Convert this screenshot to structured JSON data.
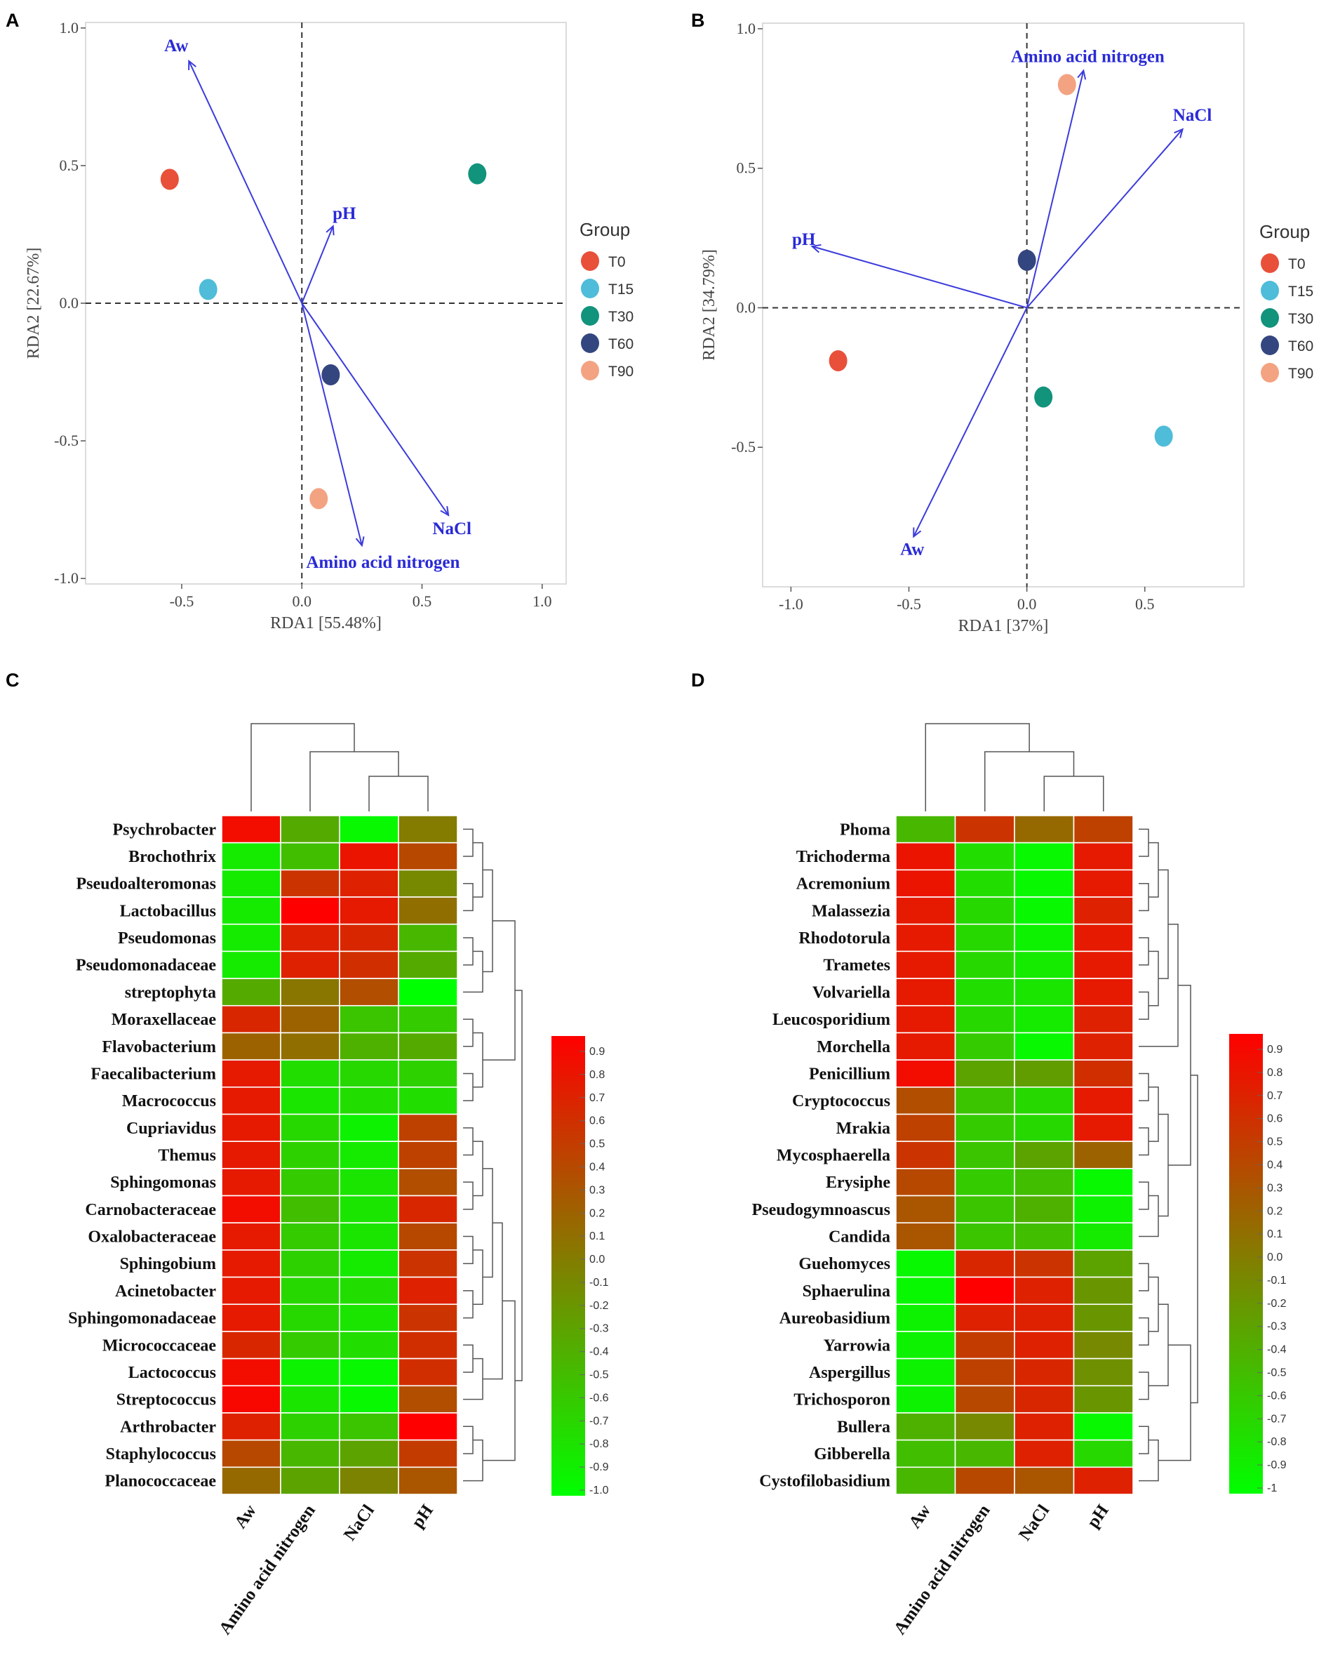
{
  "chart_data": [
    {
      "panel": "A",
      "type": "scatter",
      "subtype": "rda-biplot",
      "xlabel": "RDA1 [55.48%]",
      "ylabel": "RDA2 [22.67%]",
      "xlim": [
        -0.9,
        1.1
      ],
      "ylim": [
        -1.02,
        1.02
      ],
      "xticks": [
        -0.5,
        0.0,
        0.5,
        1.0
      ],
      "yticks": [
        1.0,
        0.5,
        0.0,
        -0.5,
        -1.0
      ],
      "xtick_labels": [
        "-0.5",
        "0.0",
        "0.5",
        "1.0"
      ],
      "ytick_labels": [
        "1.0",
        "0.5",
        "0.0",
        "-0.5",
        "-1.0"
      ],
      "legend": {
        "title": "Group",
        "items": [
          "T0",
          "T15",
          "T30",
          "T60",
          "T90"
        ]
      },
      "points": [
        {
          "group": "T0",
          "x": -0.55,
          "y": 0.45
        },
        {
          "group": "T15",
          "x": -0.39,
          "y": 0.05
        },
        {
          "group": "T30",
          "x": 0.73,
          "y": 0.47
        },
        {
          "group": "T60",
          "x": 0.12,
          "y": -0.26
        },
        {
          "group": "T90",
          "x": 0.07,
          "y": -0.71
        }
      ],
      "vectors": [
        {
          "label": "Aw",
          "x": -0.47,
          "y": 0.88
        },
        {
          "label": "pH",
          "x": 0.13,
          "y": 0.28
        },
        {
          "label": "NaCl",
          "x": 0.61,
          "y": -0.77
        },
        {
          "label": "Amino acid nitrogen",
          "x": 0.25,
          "y": -0.88
        }
      ]
    },
    {
      "panel": "B",
      "type": "scatter",
      "subtype": "rda-biplot",
      "xlabel": "RDA1 [37%]",
      "ylabel": "RDA2 [34.79%]",
      "xlim": [
        -1.12,
        0.92
      ],
      "ylim": [
        -1.0,
        1.02
      ],
      "xticks": [
        -1.0,
        -0.5,
        0.0,
        0.5
      ],
      "yticks": [
        1.0,
        0.5,
        0.0,
        -0.5
      ],
      "xtick_labels": [
        "-1.0",
        "-0.5",
        "0.0",
        "0.5"
      ],
      "ytick_labels": [
        "1.0",
        "0.5",
        "0.0",
        "-0.5"
      ],
      "legend": {
        "title": "Group",
        "items": [
          "T0",
          "T15",
          "T30",
          "T60",
          "T90"
        ]
      },
      "points": [
        {
          "group": "T0",
          "x": -0.8,
          "y": -0.19
        },
        {
          "group": "T15",
          "x": 0.58,
          "y": -0.46
        },
        {
          "group": "T30",
          "x": 0.07,
          "y": -0.32
        },
        {
          "group": "T60",
          "x": 0.0,
          "y": 0.17
        },
        {
          "group": "T90",
          "x": 0.17,
          "y": 0.8
        }
      ],
      "vectors": [
        {
          "label": "Amino acid nitrogen",
          "x": 0.24,
          "y": 0.85
        },
        {
          "label": "NaCl",
          "x": 0.66,
          "y": 0.64
        },
        {
          "label": "pH",
          "x": -0.91,
          "y": 0.22
        },
        {
          "label": "Aw",
          "x": -0.48,
          "y": -0.82
        }
      ]
    },
    {
      "panel": "C",
      "type": "heatmap",
      "columns": [
        "Aw",
        "Amino acid nitrogen",
        "NaCl",
        "pH"
      ],
      "rows": [
        "Psychrobacter",
        "Brochothrix",
        "Pseudoalteromonas",
        "Lactobacillus",
        "Pseudomonas",
        "Pseudomonadaceae",
        "streptophyta",
        "Moraxellaceae",
        "Flavobacterium",
        "Faecalibacterium",
        "Macrococcus",
        "Cupriavidus",
        "Themus",
        "Sphingomonas",
        "Carnobacteraceae",
        "Oxalobacteraceae",
        "Sphingobium",
        "Acinetobacter",
        "Sphingomonadaceae",
        "Micrococcaceae",
        "Lactococcus",
        "Streptococcus",
        "Arthrobacter",
        "Staphylococcus",
        "Planococcaceae"
      ],
      "values": [
        [
          0.85,
          -0.35,
          -0.95,
          0.0
        ],
        [
          -0.85,
          -0.5,
          0.8,
          0.4
        ],
        [
          -0.85,
          0.55,
          0.7,
          -0.1
        ],
        [
          -0.85,
          0.95,
          0.75,
          0.1
        ],
        [
          -0.85,
          0.7,
          0.65,
          -0.45
        ],
        [
          -0.85,
          0.7,
          0.6,
          -0.35
        ],
        [
          -0.35,
          0.05,
          0.35,
          -1.0
        ],
        [
          0.65,
          0.2,
          -0.55,
          -0.6
        ],
        [
          0.2,
          0.1,
          -0.4,
          -0.35
        ],
        [
          0.75,
          -0.75,
          -0.7,
          -0.65
        ],
        [
          0.75,
          -0.8,
          -0.75,
          -0.75
        ],
        [
          0.75,
          -0.7,
          -0.9,
          0.45
        ],
        [
          0.75,
          -0.65,
          -0.85,
          0.45
        ],
        [
          0.75,
          -0.6,
          -0.8,
          0.35
        ],
        [
          0.85,
          -0.5,
          -0.8,
          0.65
        ],
        [
          0.75,
          -0.6,
          -0.8,
          0.4
        ],
        [
          0.75,
          -0.65,
          -0.85,
          0.55
        ],
        [
          0.75,
          -0.7,
          -0.75,
          0.7
        ],
        [
          0.75,
          -0.7,
          -0.8,
          0.55
        ],
        [
          0.65,
          -0.6,
          -0.75,
          0.6
        ],
        [
          0.85,
          -0.9,
          -0.95,
          0.6
        ],
        [
          0.9,
          -0.8,
          -0.95,
          0.35
        ],
        [
          0.7,
          -0.65,
          -0.55,
          0.95
        ],
        [
          0.4,
          -0.45,
          -0.3,
          0.5
        ],
        [
          0.15,
          -0.3,
          -0.05,
          0.3
        ]
      ],
      "colorbar": {
        "min": -1.0,
        "max": 0.9,
        "labels": [
          "0.9",
          "0.8",
          "0.7",
          "0.6",
          "0.5",
          "0.4",
          "0.3",
          "0.2",
          "0.1",
          "0.0",
          "-0.1",
          "-0.2",
          "-0.3",
          "-0.4",
          "-0.5",
          "-0.6",
          "-0.7",
          "-0.8",
          "-0.9",
          "-1.0"
        ]
      }
    },
    {
      "panel": "D",
      "type": "heatmap",
      "columns": [
        "Aw",
        "Amino acid nitrogen",
        "NaCl",
        "pH"
      ],
      "rows": [
        "Phoma",
        "Trichoderma",
        "Acremonium",
        "Malassezia",
        "Rhodotorula",
        "Trametes",
        "Volvariella",
        "Leucosporidium",
        "Morchella",
        "Penicillium",
        "Cryptococcus",
        "Mrakia",
        "Mycosphaerella",
        "Erysiphe",
        "Pseudogymnoascus",
        "Candida",
        "Guehomyces",
        "Sphaerulina",
        "Aureobasidium",
        "Yarrowia",
        "Aspergillus",
        "Trichosporon",
        "Bullera",
        "Gibberella",
        "Cystofilobasidium"
      ],
      "values": [
        [
          -0.45,
          0.55,
          0.15,
          0.45
        ],
        [
          0.8,
          -0.75,
          -0.95,
          0.75
        ],
        [
          0.8,
          -0.75,
          -0.95,
          0.75
        ],
        [
          0.75,
          -0.7,
          -0.95,
          0.7
        ],
        [
          0.75,
          -0.7,
          -0.9,
          0.75
        ],
        [
          0.75,
          -0.7,
          -0.85,
          0.75
        ],
        [
          0.75,
          -0.75,
          -0.8,
          0.75
        ],
        [
          0.75,
          -0.7,
          -0.85,
          0.7
        ],
        [
          0.75,
          -0.6,
          -0.95,
          0.7
        ],
        [
          0.85,
          -0.3,
          -0.25,
          0.6
        ],
        [
          0.35,
          -0.55,
          -0.7,
          0.75
        ],
        [
          0.45,
          -0.6,
          -0.7,
          0.75
        ],
        [
          0.55,
          -0.55,
          -0.3,
          0.2
        ],
        [
          0.4,
          -0.6,
          -0.5,
          -0.95
        ],
        [
          0.3,
          -0.55,
          -0.4,
          -0.9
        ],
        [
          0.3,
          -0.55,
          -0.5,
          -0.85
        ],
        [
          -0.95,
          0.65,
          0.55,
          -0.3
        ],
        [
          -0.95,
          0.95,
          0.7,
          -0.2
        ],
        [
          -0.9,
          0.7,
          0.7,
          -0.2
        ],
        [
          -0.9,
          0.5,
          0.7,
          -0.1
        ],
        [
          -0.9,
          0.45,
          0.65,
          -0.15
        ],
        [
          -0.9,
          0.4,
          0.65,
          -0.2
        ],
        [
          -0.4,
          -0.1,
          0.7,
          -0.95
        ],
        [
          -0.5,
          -0.45,
          0.7,
          -0.7
        ],
        [
          -0.45,
          0.4,
          0.3,
          0.7
        ]
      ],
      "colorbar": {
        "min": -1,
        "max": 0.9,
        "labels": [
          "0.9",
          "0.8",
          "0.7",
          "0.6",
          "0.5",
          "0.4",
          "0.3",
          "0.2",
          "0.1",
          "0.0",
          "-0.1",
          "-0.2",
          "-0.3",
          "-0.4",
          "-0.5",
          "-0.6",
          "-0.7",
          "-0.8",
          "-0.9",
          "-1"
        ]
      }
    }
  ],
  "panel_labels": {
    "a": "A",
    "b": "B",
    "c": "C",
    "d": "D"
  },
  "colors": {
    "groups": {
      "T0": "#e8503a",
      "T15": "#4fbcd9",
      "T30": "#11937c",
      "T60": "#34467f",
      "T90": "#f3a382"
    },
    "vector": "#3b3bdc",
    "heat_low": "#00ff00",
    "heat_high": "#ff0000"
  }
}
